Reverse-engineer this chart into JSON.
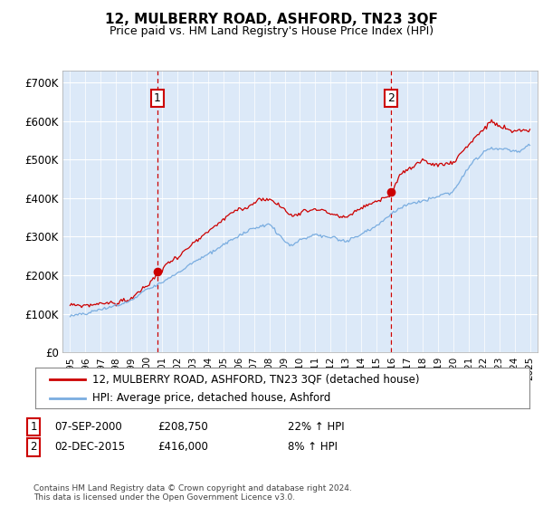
{
  "title": "12, MULBERRY ROAD, ASHFORD, TN23 3QF",
  "subtitle": "Price paid vs. HM Land Registry's House Price Index (HPI)",
  "background_color": "#ffffff",
  "plot_bg_color": "#dce9f8",
  "red_line_color": "#cc0000",
  "blue_line_color": "#7aade0",
  "dashed_line_color": "#cc0000",
  "ylim": [
    0,
    730000
  ],
  "yticks": [
    0,
    100000,
    200000,
    300000,
    400000,
    500000,
    600000,
    700000
  ],
  "ytick_labels": [
    "£0",
    "£100K",
    "£200K",
    "£300K",
    "£400K",
    "£500K",
    "£600K",
    "£700K"
  ],
  "transaction1": {
    "date_num": 2000.68,
    "price": 208750,
    "label": "1"
  },
  "transaction2": {
    "date_num": 2015.92,
    "price": 416000,
    "label": "2"
  },
  "t1_note_date": "07-SEP-2000",
  "t1_note_price": "£208,750",
  "t1_note_hpi": "22% ↑ HPI",
  "t2_note_date": "02-DEC-2015",
  "t2_note_price": "£416,000",
  "t2_note_hpi": "8% ↑ HPI",
  "legend_line1": "12, MULBERRY ROAD, ASHFORD, TN23 3QF (detached house)",
  "legend_line2": "HPI: Average price, detached house, Ashford",
  "footnote": "Contains HM Land Registry data © Crown copyright and database right 2024.\nThis data is licensed under the Open Government Licence v3.0.",
  "xlim_left": 1994.5,
  "xlim_right": 2025.5,
  "red_anchors_x": [
    1995.0,
    1996.0,
    1997.0,
    1998.0,
    1999.0,
    2000.0,
    2000.68,
    2001.5,
    2002.5,
    2003.5,
    2004.5,
    2005.5,
    2006.5,
    2007.5,
    2008.0,
    2009.0,
    2009.5,
    2010.0,
    2011.0,
    2012.0,
    2013.0,
    2014.0,
    2015.0,
    2015.92,
    2016.5,
    2017.5,
    2018.0,
    2019.0,
    2020.0,
    2021.0,
    2021.5,
    2022.0,
    2022.5,
    2023.0,
    2023.5,
    2024.0,
    2024.5,
    2025.0
  ],
  "red_anchors_y": [
    120000,
    122000,
    128000,
    133000,
    145000,
    175000,
    208750,
    240000,
    265000,
    295000,
    325000,
    355000,
    375000,
    410000,
    405000,
    375000,
    360000,
    370000,
    380000,
    370000,
    360000,
    385000,
    400000,
    416000,
    470000,
    490000,
    500000,
    500000,
    500000,
    550000,
    570000,
    590000,
    610000,
    600000,
    595000,
    590000,
    590000,
    595000
  ],
  "blue_anchors_x": [
    1995.0,
    1996.0,
    1997.0,
    1998.0,
    1999.0,
    2000.0,
    2001.0,
    2002.0,
    2003.0,
    2004.0,
    2005.0,
    2006.0,
    2007.0,
    2008.0,
    2009.0,
    2009.5,
    2010.0,
    2011.0,
    2012.0,
    2013.0,
    2014.0,
    2015.0,
    2016.0,
    2017.0,
    2018.0,
    2019.0,
    2020.0,
    2021.0,
    2021.5,
    2022.0,
    2022.5,
    2023.0,
    2023.5,
    2024.0,
    2024.5,
    2025.0
  ],
  "blue_anchors_y": [
    93000,
    97000,
    105000,
    115000,
    130000,
    155000,
    175000,
    200000,
    225000,
    255000,
    280000,
    305000,
    330000,
    340000,
    295000,
    285000,
    300000,
    315000,
    305000,
    300000,
    320000,
    345000,
    380000,
    400000,
    410000,
    420000,
    430000,
    490000,
    510000,
    525000,
    535000,
    535000,
    530000,
    525000,
    530000,
    545000
  ]
}
